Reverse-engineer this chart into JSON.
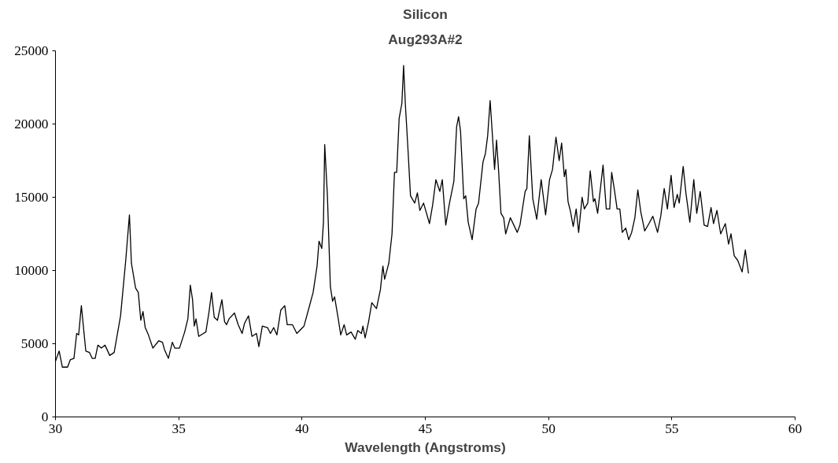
{
  "chart_data": {
    "type": "line",
    "title": "Silicon",
    "subtitle": "Aug293A#2",
    "xlabel": "Wavelength (Angstroms)",
    "xlim": [
      30,
      60
    ],
    "xticks": [
      30,
      35,
      40,
      45,
      50,
      55,
      60
    ],
    "ylim": [
      0,
      25000
    ],
    "yticks": [
      0,
      5000,
      10000,
      15000,
      20000,
      25000
    ],
    "grid": false,
    "marker": "none",
    "line_style": "solid",
    "series": [
      {
        "color": "#000000",
        "x": [
          30.0,
          30.15,
          30.28,
          30.49,
          30.6,
          30.75,
          30.86,
          30.94,
          31.05,
          31.23,
          31.38,
          31.49,
          31.61,
          31.72,
          31.86,
          32.01,
          32.2,
          32.38,
          32.64,
          32.85,
          33.0,
          33.08,
          33.25,
          33.36,
          33.46,
          33.55,
          33.64,
          33.77,
          33.95,
          34.19,
          34.34,
          34.42,
          34.58,
          34.74,
          34.84,
          35.03,
          35.24,
          35.37,
          35.47,
          35.56,
          35.63,
          35.7,
          35.81,
          36.0,
          36.1,
          36.23,
          36.33,
          36.44,
          36.57,
          36.75,
          36.86,
          36.94,
          37.04,
          37.26,
          37.41,
          37.57,
          37.67,
          37.83,
          37.97,
          38.15,
          38.25,
          38.39,
          38.6,
          38.72,
          38.85,
          38.98,
          39.14,
          39.3,
          39.4,
          39.61,
          39.79,
          40.08,
          40.29,
          40.45,
          40.61,
          40.69,
          40.8,
          40.87,
          40.92,
          41.03,
          41.15,
          41.24,
          41.32,
          41.47,
          41.57,
          41.71,
          41.81,
          41.99,
          42.16,
          42.26,
          42.41,
          42.47,
          42.56,
          42.7,
          42.83,
          43.02,
          43.18,
          43.28,
          43.35,
          43.52,
          43.65,
          43.75,
          43.84,
          43.94,
          44.05,
          44.12,
          44.19,
          44.3,
          44.4,
          44.57,
          44.68,
          44.78,
          44.93,
          45.17,
          45.3,
          45.43,
          45.59,
          45.69,
          45.83,
          45.97,
          46.16,
          46.27,
          46.35,
          46.43,
          46.56,
          46.64,
          46.74,
          46.9,
          47.06,
          47.16,
          47.34,
          47.44,
          47.53,
          47.63,
          47.72,
          47.81,
          47.89,
          47.97,
          48.07,
          48.18,
          48.26,
          48.45,
          48.73,
          48.84,
          49.05,
          49.12,
          49.22,
          49.36,
          49.52,
          49.7,
          49.88,
          50.04,
          50.16,
          50.3,
          50.43,
          50.53,
          50.64,
          50.7,
          50.79,
          50.88,
          51.0,
          51.12,
          51.22,
          51.36,
          51.45,
          51.59,
          51.69,
          51.82,
          51.88,
          51.99,
          52.21,
          52.34,
          52.48,
          52.56,
          52.68,
          52.78,
          52.89,
          52.99,
          53.13,
          53.25,
          53.37,
          53.5,
          53.62,
          53.74,
          53.9,
          54.07,
          54.23,
          54.42,
          54.55,
          54.69,
          54.82,
          54.97,
          55.09,
          55.22,
          55.3,
          55.46,
          55.57,
          55.73,
          55.89,
          56.01,
          56.15,
          56.31,
          56.45,
          56.59,
          56.69,
          56.83,
          56.98,
          57.17,
          57.3,
          57.4,
          57.53,
          57.67,
          57.85,
          57.98,
          58.11
        ],
        "values": [
          3800,
          4500,
          3400,
          3400,
          3900,
          4000,
          5700,
          5600,
          7600,
          4500,
          4400,
          4000,
          4000,
          4900,
          4700,
          4900,
          4200,
          4400,
          6900,
          10700,
          13800,
          10500,
          8800,
          8500,
          6600,
          7200,
          6100,
          5600,
          4700,
          5200,
          5100,
          4600,
          4000,
          5100,
          4700,
          4700,
          5800,
          6700,
          9000,
          8000,
          6200,
          6700,
          5500,
          5700,
          5800,
          7200,
          8500,
          6800,
          6600,
          8000,
          6500,
          6300,
          6700,
          7100,
          6300,
          5700,
          6400,
          6900,
          5500,
          5700,
          4800,
          6200,
          6100,
          5700,
          6100,
          5600,
          7300,
          7600,
          6300,
          6300,
          5700,
          6200,
          7500,
          8500,
          10300,
          12000,
          11500,
          13300,
          18600,
          15100,
          8900,
          7900,
          8200,
          6700,
          5600,
          6300,
          5600,
          5800,
          5300,
          5900,
          5700,
          6200,
          5400,
          6500,
          7800,
          7400,
          8700,
          10300,
          9400,
          10500,
          12500,
          16700,
          16700,
          20400,
          21400,
          24000,
          21400,
          18200,
          15100,
          14600,
          15300,
          14100,
          14600,
          13200,
          14500,
          16200,
          15400,
          16200,
          13100,
          14500,
          16100,
          19800,
          20500,
          19500,
          14900,
          15100,
          13300,
          12100,
          14200,
          14600,
          17400,
          18000,
          19200,
          21600,
          19300,
          16900,
          18900,
          16900,
          13900,
          13600,
          12500,
          13600,
          12600,
          13100,
          15400,
          15600,
          19200,
          14900,
          13500,
          16200,
          13800,
          16200,
          16900,
          19100,
          17500,
          18700,
          16400,
          16900,
          14700,
          14100,
          13000,
          14200,
          12600,
          15000,
          14200,
          14600,
          16800,
          14700,
          14900,
          13900,
          17200,
          14200,
          14200,
          16700,
          15400,
          14200,
          14200,
          12600,
          12900,
          12100,
          12600,
          13600,
          15500,
          14000,
          12700,
          13200,
          13700,
          12600,
          13700,
          15600,
          14200,
          16500,
          14300,
          15200,
          14600,
          17100,
          15300,
          13300,
          16200,
          13900,
          15400,
          13100,
          13000,
          14300,
          13200,
          14100,
          12500,
          13200,
          11800,
          12500,
          11000,
          10700,
          9900,
          11400,
          9800
        ]
      }
    ]
  }
}
